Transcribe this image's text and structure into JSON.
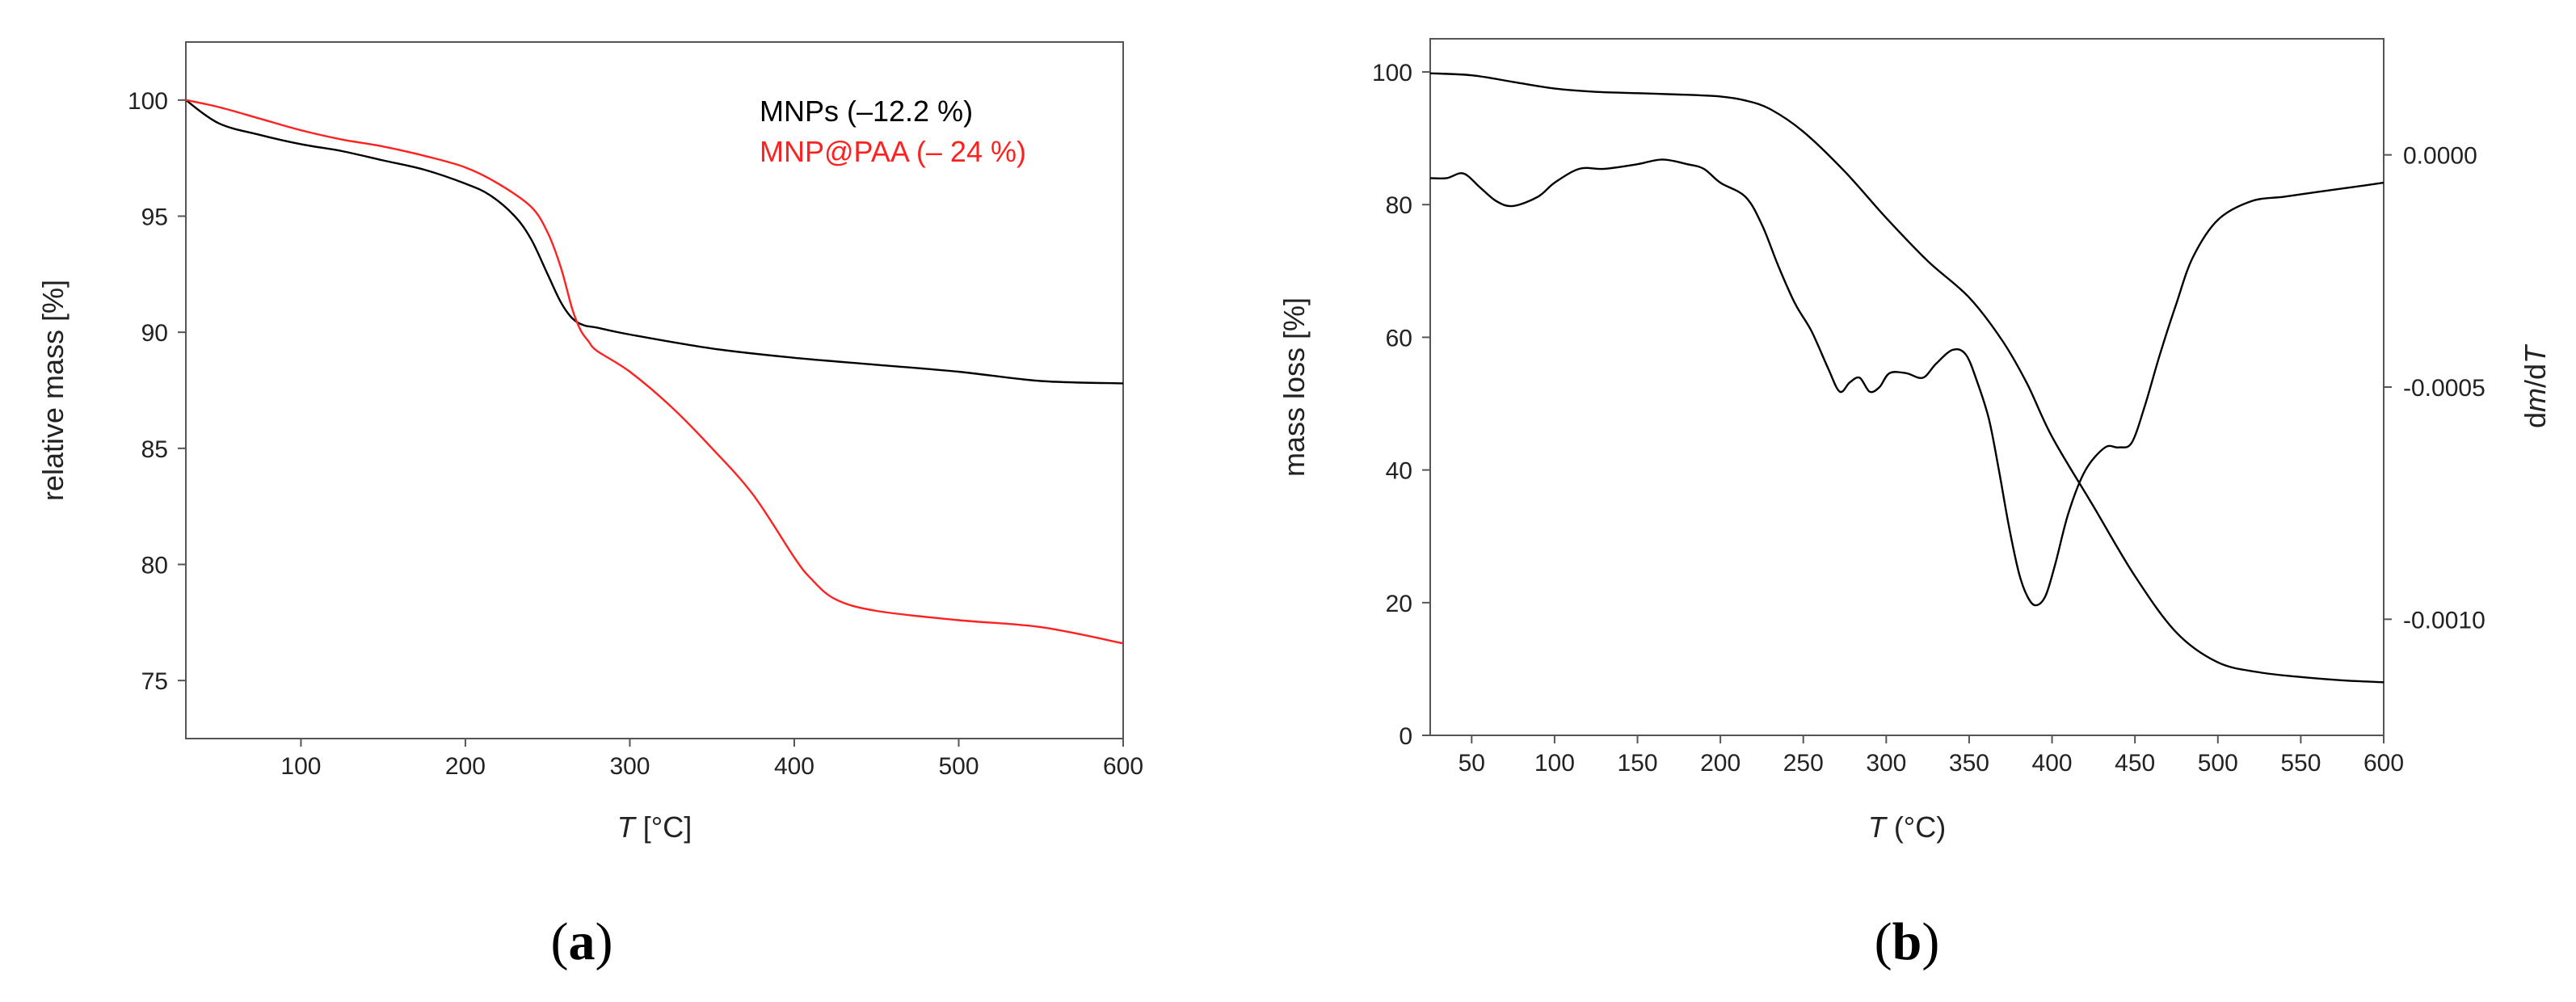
{
  "panels": [
    {
      "label_open": "(",
      "label_letter": "a",
      "label_close": ")"
    },
    {
      "label_open": "(",
      "label_letter": "b",
      "label_close": ")"
    }
  ],
  "chart_data": [
    {
      "type": "line",
      "xlabel_italic": "T",
      "xlabel_rest": " [°C]",
      "ylabel": "relative mass [%]",
      "xlim": [
        30,
        600
      ],
      "ylim": [
        72.5,
        102.5
      ],
      "xticks": [
        100,
        200,
        300,
        400,
        500,
        600
      ],
      "yticks": [
        75,
        80,
        85,
        90,
        95,
        100
      ],
      "grid": false,
      "legend_position": "top-right",
      "series": [
        {
          "name": "MNPs (–12.2 %)",
          "color": "#000000",
          "x": [
            30,
            50,
            75,
            100,
            125,
            150,
            175,
            200,
            215,
            230,
            240,
            250,
            258,
            265,
            272,
            280,
            300,
            350,
            400,
            450,
            500,
            550,
            600
          ],
          "y": [
            100.0,
            99.0,
            98.5,
            98.1,
            97.8,
            97.4,
            97.0,
            96.4,
            95.9,
            95.0,
            94.0,
            92.5,
            91.3,
            90.6,
            90.3,
            90.2,
            89.9,
            89.3,
            88.9,
            88.6,
            88.3,
            87.9,
            87.8
          ]
        },
        {
          "name": "MNP@PAA (– 24 %)",
          "color": "#ff2020",
          "x": [
            30,
            50,
            75,
            100,
            125,
            150,
            175,
            200,
            220,
            240,
            250,
            258,
            265,
            270,
            275,
            280,
            300,
            325,
            350,
            375,
            400,
            410,
            425,
            450,
            500,
            550,
            600
          ],
          "y": [
            100.0,
            99.7,
            99.2,
            98.7,
            98.3,
            98.0,
            97.6,
            97.1,
            96.4,
            95.4,
            94.3,
            92.8,
            91.0,
            90.1,
            89.6,
            89.2,
            88.3,
            86.8,
            85.0,
            83.0,
            80.3,
            79.4,
            78.5,
            78.0,
            77.6,
            77.3,
            76.6
          ]
        }
      ]
    },
    {
      "type": "line",
      "xlabel_italic": "T",
      "xlabel_rest": " (°C)",
      "ylabel": "mass loss [%]",
      "y2label_pre": "d",
      "y2label_m": "m",
      "y2label_mid": "/d",
      "y2label_t": "T",
      "xlim": [
        25,
        600
      ],
      "ylim": [
        0,
        105
      ],
      "y2lim": [
        -0.00125,
        0.00025
      ],
      "xticks": [
        50,
        100,
        150,
        200,
        250,
        300,
        350,
        400,
        450,
        500,
        550,
        600
      ],
      "yticks": [
        0,
        20,
        40,
        60,
        80,
        100
      ],
      "y2ticks": [
        0.0,
        -0.0005,
        -0.001
      ],
      "y2tick_labels": [
        "0.0000",
        "-0.0005",
        "-0.0010"
      ],
      "grid": false,
      "series": [
        {
          "axis": "left",
          "color": "#000000",
          "x": [
            25,
            50,
            75,
            100,
            125,
            150,
            175,
            200,
            215,
            230,
            250,
            275,
            300,
            325,
            350,
            370,
            385,
            400,
            425,
            450,
            475,
            500,
            525,
            550,
            575,
            600
          ],
          "y": [
            99.8,
            99.5,
            98.5,
            97.5,
            97.0,
            96.8,
            96.6,
            96.3,
            95.7,
            94.4,
            91.0,
            85.0,
            78.0,
            71.5,
            66.0,
            59.5,
            53.0,
            45.0,
            34.5,
            24.0,
            15.5,
            11.0,
            9.5,
            8.8,
            8.3,
            8.0
          ]
        },
        {
          "axis": "right",
          "color": "#000000",
          "x": [
            25,
            35,
            45,
            55,
            65,
            75,
            90,
            100,
            115,
            130,
            150,
            165,
            180,
            190,
            200,
            215,
            225,
            235,
            245,
            255,
            265,
            272,
            278,
            284,
            290,
            296,
            302,
            312,
            322,
            330,
            340,
            348,
            355,
            362,
            368,
            374,
            380,
            385,
            390,
            396,
            402,
            410,
            420,
            432,
            440,
            448,
            456,
            465,
            475,
            485,
            500,
            520,
            540,
            560,
            580,
            600
          ],
          "y": [
            -5e-05,
            -5e-05,
            -4e-05,
            -7e-05,
            -0.0001,
            -0.00011,
            -9e-05,
            -6e-05,
            -3e-05,
            -3e-05,
            -2e-05,
            -1e-05,
            -2e-05,
            -3e-05,
            -6e-05,
            -9e-05,
            -0.00015,
            -0.00024,
            -0.00032,
            -0.00038,
            -0.00046,
            -0.00051,
            -0.00049,
            -0.00048,
            -0.00051,
            -0.0005,
            -0.00047,
            -0.00047,
            -0.00048,
            -0.00045,
            -0.00042,
            -0.00043,
            -0.00049,
            -0.00057,
            -0.00068,
            -0.0008,
            -0.0009,
            -0.00095,
            -0.00097,
            -0.00095,
            -0.00088,
            -0.00077,
            -0.00068,
            -0.00063,
            -0.00063,
            -0.00062,
            -0.00054,
            -0.00043,
            -0.00032,
            -0.00022,
            -0.00014,
            -0.0001,
            -9e-05,
            -8e-05,
            -7e-05,
            -6e-05
          ]
        }
      ]
    }
  ]
}
